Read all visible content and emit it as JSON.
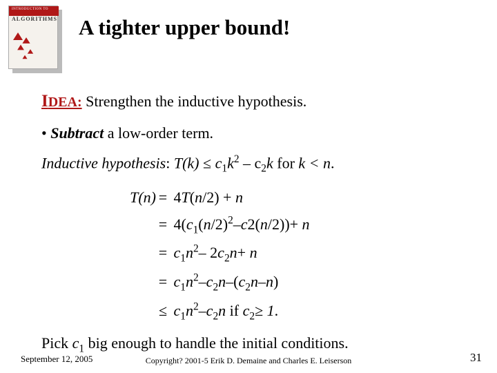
{
  "book": {
    "stripe_text": "INTRODUCTION TO",
    "title_text": "ALGORITHMS"
  },
  "title": "A tighter upper bound!",
  "idea": {
    "label_big": "I",
    "label_rest": "DEA:",
    "text": " Strengthen the inductive hypothesis."
  },
  "bullet": {
    "marker": "• ",
    "strong": "Subtract",
    "rest": " a low-order term."
  },
  "hypothesis": {
    "label": "Inductive hypothesis",
    "colon": ": ",
    "expr_lhs": "T(k)",
    "expr_op": " ≤ ",
    "expr_rhs_a": "c",
    "expr_rhs_b": "k",
    "expr_rhs_c": " – c",
    "expr_rhs_d": "k",
    "for": " for ",
    "cond": "k < n",
    "period": "."
  },
  "deriv": {
    "line1": {
      "lhs": "T(n)",
      "op": "=",
      "rhs": " 4<i>T</i>(<i>n</i>/2) + <i>n</i>"
    },
    "line2": {
      "lhs": "",
      "op": "=",
      "rhs": " 4(<i>c</i><sub>1</sub>(<i>n</i>/2)<sup>2</sup>–<i>c</i>2(<i>n</i>/2))+ <i>n</i>"
    },
    "line3": {
      "lhs": "",
      "op": "=",
      "rhs": " <i>c</i><sub>1</sub><i>n</i><sup>2</sup>– 2<i>c</i><sub>2</sub><i>n</i>+ <i>n</i>"
    },
    "line4": {
      "lhs": "",
      "op": "=",
      "rhs": " <i>c</i><sub>1</sub><i>n</i><sup>2</sup>–<i>c</i><sub>2</sub><i>n</i>–(<i>c</i><sub>2</sub><i>n</i>–<i>n</i>)"
    },
    "line5": {
      "lhs": "",
      "op": "≤",
      "rhs": " <i>c</i><sub>1</sub><i>n</i><sup>2</sup>–<i>c</i><sub>2</sub><i>n</i> if <i>c</i><sub>2</sub>≥ <i>1</i>."
    }
  },
  "conclude": {
    "a": "Pick ",
    "c1": "c",
    "b": " big enough to handle the initial conditions."
  },
  "footer": {
    "date": "September 12, 2005",
    "copyright": "Copyright? 2001-5 Erik D. Demaine and Charles E. Leiserson",
    "page": "31"
  },
  "colors": {
    "accent": "#b01818",
    "text": "#000000",
    "bg": "#ffffff"
  }
}
